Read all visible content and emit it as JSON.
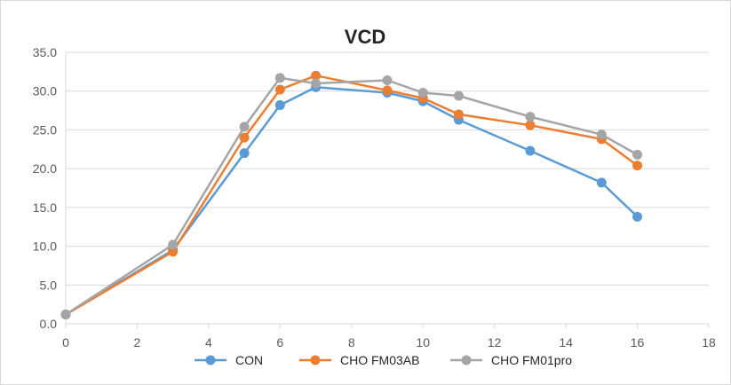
{
  "chart_data": {
    "type": "line",
    "title": "VCD",
    "xlabel": "",
    "ylabel": "",
    "xlim": [
      0,
      18
    ],
    "ylim": [
      0,
      35
    ],
    "x_ticks": [
      0,
      2,
      4,
      6,
      8,
      10,
      12,
      14,
      16,
      18
    ],
    "y_ticks": [
      0,
      5,
      10,
      15,
      20,
      25,
      30,
      35
    ],
    "y_tick_labels": [
      "0.0",
      "5.0",
      "10.0",
      "15.0",
      "20.0",
      "25.0",
      "30.0",
      "35.0"
    ],
    "x_tick_labels": [
      "0",
      "2",
      "4",
      "6",
      "8",
      "10",
      "12",
      "14",
      "16",
      "18"
    ],
    "grid": "horizontal",
    "legend_position": "bottom",
    "series": [
      {
        "name": "CON",
        "color": "#5b9bd5",
        "points": [
          [
            0,
            1.2
          ],
          [
            3,
            9.5
          ],
          [
            5,
            22.0
          ],
          [
            6,
            28.2
          ],
          [
            7,
            30.5
          ],
          [
            9,
            29.8
          ],
          [
            10,
            28.7
          ],
          [
            11,
            26.3
          ],
          [
            13,
            22.3
          ],
          [
            15,
            18.2
          ],
          [
            16,
            13.8
          ]
        ]
      },
      {
        "name": "CHO FM03AB",
        "color": "#ed7d31",
        "points": [
          [
            0,
            1.2
          ],
          [
            3,
            9.3
          ],
          [
            5,
            24.0
          ],
          [
            6,
            30.2
          ],
          [
            7,
            32.0
          ],
          [
            9,
            30.1
          ],
          [
            10,
            29.1
          ],
          [
            11,
            27.0
          ],
          [
            13,
            25.6
          ],
          [
            15,
            23.8
          ],
          [
            16,
            20.4
          ]
        ]
      },
      {
        "name": "CHO FM01pro",
        "color": "#a5a5a5",
        "points": [
          [
            0,
            1.2
          ],
          [
            3,
            10.2
          ],
          [
            5,
            25.4
          ],
          [
            6,
            31.7
          ],
          [
            7,
            31.0
          ],
          [
            9,
            31.4
          ],
          [
            10,
            29.8
          ],
          [
            11,
            29.4
          ],
          [
            13,
            26.7
          ],
          [
            15,
            24.4
          ],
          [
            16,
            21.8
          ]
        ]
      }
    ]
  }
}
